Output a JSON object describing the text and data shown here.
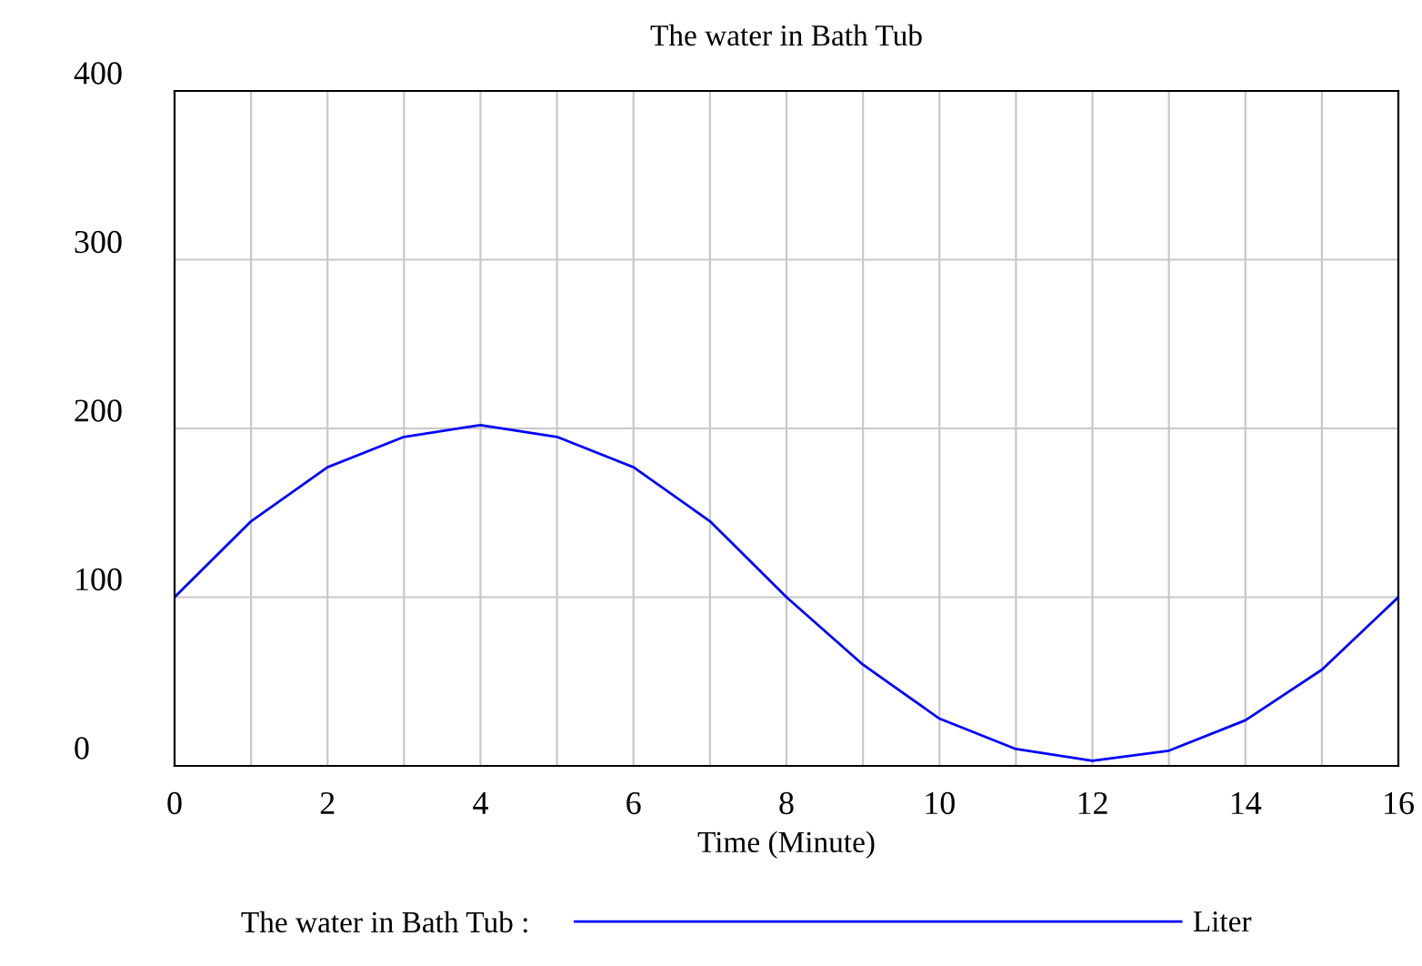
{
  "chart_data": {
    "type": "line",
    "title": "The water in Bath Tub",
    "xlabel": "Time (Minute)",
    "x": [
      0,
      1,
      2,
      3,
      4,
      5,
      6,
      7,
      8,
      9,
      10,
      11,
      12,
      13,
      14,
      15,
      16
    ],
    "series": [
      {
        "name": "The water in Bath Tub :",
        "color": "#0000ff",
        "values": [
          100,
          145,
          177,
          195,
          202,
          195,
          177,
          145,
          100,
          60,
          28,
          10,
          3,
          9,
          27,
          57,
          100
        ]
      }
    ],
    "xlim": [
      0,
      16
    ],
    "xticks": [
      0,
      {
        "value": 1,
        "label": null
      },
      2,
      {
        "value": 3,
        "label": null
      },
      4,
      {
        "value": 5,
        "label": null
      },
      6,
      {
        "value": 7,
        "label": null
      },
      8,
      {
        "value": 9,
        "label": null
      },
      10,
      {
        "value": 11,
        "label": null
      },
      12,
      {
        "value": 13,
        "label": null
      },
      14,
      {
        "value": 15,
        "label": null
      },
      16
    ],
    "ylim": [
      0,
      400
    ],
    "yticks": [
      0,
      100,
      200,
      300,
      400
    ],
    "grid": true,
    "legend": "bottom",
    "marker": "none",
    "line_style": "solid",
    "annotations": [
      "Liter"
    ]
  }
}
